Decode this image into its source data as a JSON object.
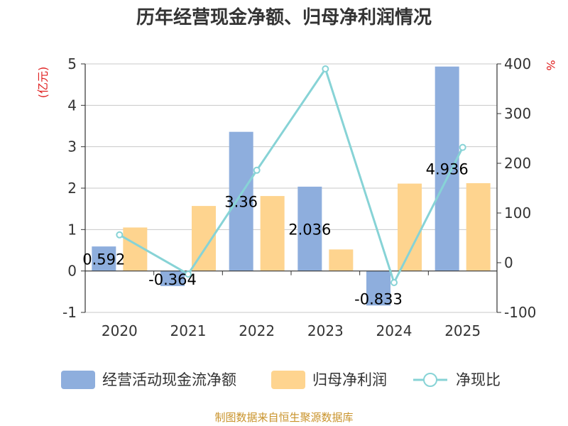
{
  "title": "历年经营现金净额、归母净利润情况",
  "left_unit": "(亿元)",
  "right_unit": "%",
  "source": "制图数据来自恒生聚源数据库",
  "colors": {
    "cash": "#8eaedd",
    "profit": "#fed48f",
    "ratio": "#87d3d6",
    "unit": "#e02020",
    "source": "#c9932b"
  },
  "chart_data": {
    "type": "bar",
    "title": "历年经营现金净额、归母净利润情况",
    "categories": [
      "2020",
      "2021",
      "2022",
      "2023",
      "2024",
      "2025"
    ],
    "left_axis": {
      "label": "(亿元)",
      "range": [
        -1,
        5
      ],
      "ticks": [
        "-1",
        "0",
        "1",
        "2",
        "3",
        "4",
        "5"
      ]
    },
    "right_axis": {
      "label": "%",
      "range": [
        -100,
        400
      ],
      "ticks": [
        "-100",
        "0",
        "100",
        "200",
        "300",
        "400"
      ]
    },
    "grid": true,
    "legend_position": "bottom",
    "series": [
      {
        "name": "经营活动现金流净额",
        "type": "bar",
        "axis": "left",
        "values": [
          0.592,
          -0.364,
          3.36,
          2.036,
          -0.833,
          4.936
        ],
        "labels": [
          "0.592",
          "-0.364",
          "3.36",
          "2.036",
          "-0.833",
          "4.936"
        ]
      },
      {
        "name": "归母净利润",
        "type": "bar",
        "axis": "left",
        "values": [
          1.05,
          1.57,
          1.81,
          0.52,
          2.11,
          2.12
        ]
      },
      {
        "name": "净现比",
        "type": "line",
        "axis": "right",
        "values": [
          56,
          -23,
          186,
          390,
          -40,
          232
        ]
      }
    ]
  }
}
